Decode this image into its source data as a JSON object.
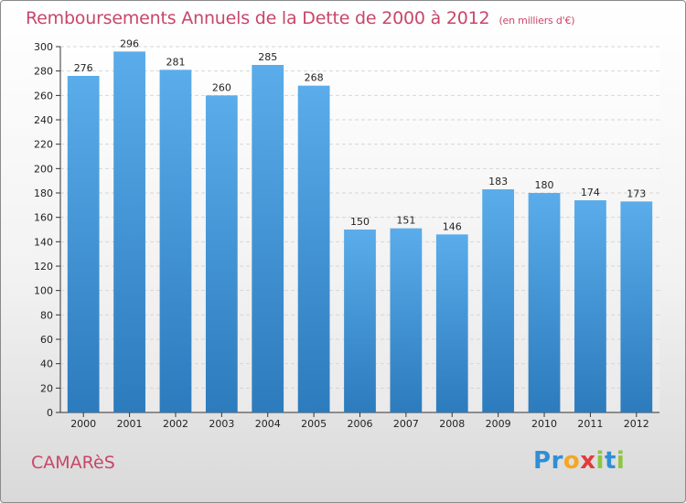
{
  "chart_data": {
    "type": "bar",
    "title": "Remboursements Annuels de la Dette de 2000 à 2012",
    "unit_label": "(en milliers d'€)",
    "categories": [
      "2000",
      "2001",
      "2002",
      "2003",
      "2004",
      "2005",
      "2006",
      "2007",
      "2008",
      "2009",
      "2010",
      "2011",
      "2012"
    ],
    "values": [
      276,
      296,
      281,
      260,
      285,
      268,
      150,
      151,
      146,
      183,
      180,
      174,
      173
    ],
    "ylim": [
      0,
      300
    ],
    "ytick_step": 20,
    "grid": true,
    "bar_color_top": "#5aacea",
    "bar_color_bottom": "#2c7bbd"
  },
  "footer": {
    "commune": "CAMARèS",
    "brand_letters": [
      {
        "ch": "P",
        "color": "#2f8fd6"
      },
      {
        "ch": "r",
        "color": "#2f8fd6"
      },
      {
        "ch": "o",
        "color": "#f5a623"
      },
      {
        "ch": "x",
        "color": "#e23b3b"
      },
      {
        "ch": "i",
        "color": "#8dc63f"
      },
      {
        "ch": "t",
        "color": "#2f8fd6"
      },
      {
        "ch": "i",
        "color": "#8dc63f"
      }
    ]
  }
}
